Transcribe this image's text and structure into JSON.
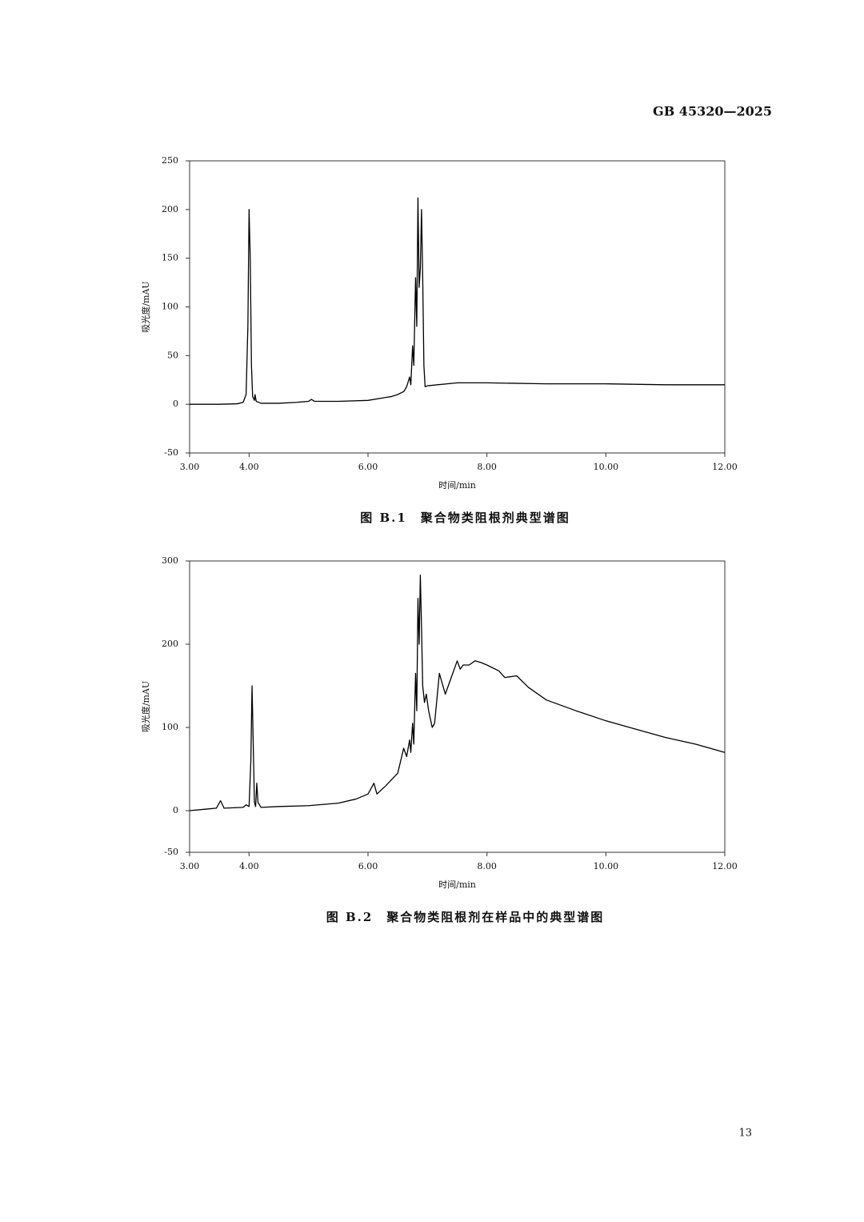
{
  "header": "GB 45320—2025",
  "chart_data": [
    {
      "type": "line",
      "caption": "图 B.1　聚合物类阻根剂典型谱图",
      "xlabel": "时间/min",
      "ylabel": "吸光度/mAU",
      "x": [
        3.0,
        3.5,
        3.8,
        3.9,
        3.95,
        3.98,
        4.0,
        4.02,
        4.04,
        4.06,
        4.09,
        4.1,
        4.12,
        4.2,
        4.5,
        4.8,
        5.0,
        5.05,
        5.1,
        5.5,
        6.0,
        6.3,
        6.4,
        6.5,
        6.6,
        6.65,
        6.7,
        6.72,
        6.75,
        6.77,
        6.8,
        6.82,
        6.84,
        6.86,
        6.88,
        6.9,
        6.92,
        6.94,
        6.96,
        7.0,
        7.5,
        8.0,
        9.0,
        10.0,
        11.0,
        12.0
      ],
      "series": [
        {
          "color": "#000000",
          "values": [
            0,
            0,
            0.5,
            2,
            10,
            80,
            200,
            150,
            40,
            8,
            4,
            10,
            3,
            1,
            1,
            2,
            3,
            5,
            3,
            3,
            4,
            7,
            8,
            10,
            13,
            18,
            28,
            20,
            60,
            40,
            130,
            80,
            212,
            120,
            140,
            200,
            130,
            40,
            18,
            19,
            22,
            22,
            21,
            21,
            20,
            20
          ]
        }
      ],
      "xlim": [
        3,
        12
      ],
      "ylim": [
        -50,
        250
      ],
      "xticks": [
        {
          "value": 3,
          "label": "3.00"
        },
        {
          "value": 4,
          "label": "4.00"
        },
        {
          "value": 6,
          "label": "6.00"
        },
        {
          "value": 8,
          "label": "8.00"
        },
        {
          "value": 10,
          "label": "10.00"
        },
        {
          "value": 12,
          "label": "12.00"
        }
      ],
      "yticks": [
        -50,
        0,
        50,
        100,
        150,
        200,
        250
      ],
      "grid": false
    },
    {
      "type": "line",
      "caption": "图 B.2　聚合物类阻根剂在样品中的典型谱图",
      "xlabel": "时间/min",
      "ylabel": "吸光度/mAU",
      "x": [
        3.0,
        3.3,
        3.45,
        3.52,
        3.58,
        3.9,
        3.95,
        4.0,
        4.03,
        4.05,
        4.07,
        4.09,
        4.11,
        4.13,
        4.15,
        4.2,
        4.5,
        5.0,
        5.5,
        5.8,
        6.0,
        6.1,
        6.15,
        6.3,
        6.5,
        6.6,
        6.65,
        6.7,
        6.72,
        6.75,
        6.77,
        6.8,
        6.82,
        6.84,
        6.86,
        6.88,
        6.9,
        6.92,
        6.95,
        6.98,
        7.02,
        7.08,
        7.12,
        7.2,
        7.3,
        7.4,
        7.5,
        7.55,
        7.6,
        7.7,
        7.8,
        7.9,
        8.0,
        8.2,
        8.3,
        8.5,
        8.7,
        9.0,
        9.5,
        10.0,
        10.5,
        11.0,
        11.5,
        12.0
      ],
      "series": [
        {
          "color": "#000000",
          "values": [
            0,
            2,
            3,
            12,
            3,
            4,
            7,
            5,
            60,
            150,
            80,
            10,
            5,
            33,
            10,
            4,
            5,
            6,
            9,
            14,
            20,
            33,
            20,
            30,
            45,
            75,
            65,
            85,
            70,
            105,
            80,
            165,
            120,
            255,
            200,
            283,
            220,
            150,
            130,
            140,
            120,
            100,
            105,
            165,
            140,
            160,
            180,
            170,
            175,
            175,
            180,
            178,
            175,
            168,
            160,
            162,
            148,
            133,
            120,
            108,
            98,
            88,
            80,
            70
          ]
        }
      ],
      "xlim": [
        3,
        12
      ],
      "ylim": [
        -50,
        300
      ],
      "xticks": [
        {
          "value": 3,
          "label": "3.00"
        },
        {
          "value": 4,
          "label": "4.00"
        },
        {
          "value": 6,
          "label": "6.00"
        },
        {
          "value": 8,
          "label": "8.00"
        },
        {
          "value": 10,
          "label": "10.00"
        },
        {
          "value": 12,
          "label": "12.00"
        }
      ],
      "yticks": [
        -50,
        0,
        100,
        200,
        300
      ],
      "grid": false
    }
  ],
  "page_number": "13"
}
